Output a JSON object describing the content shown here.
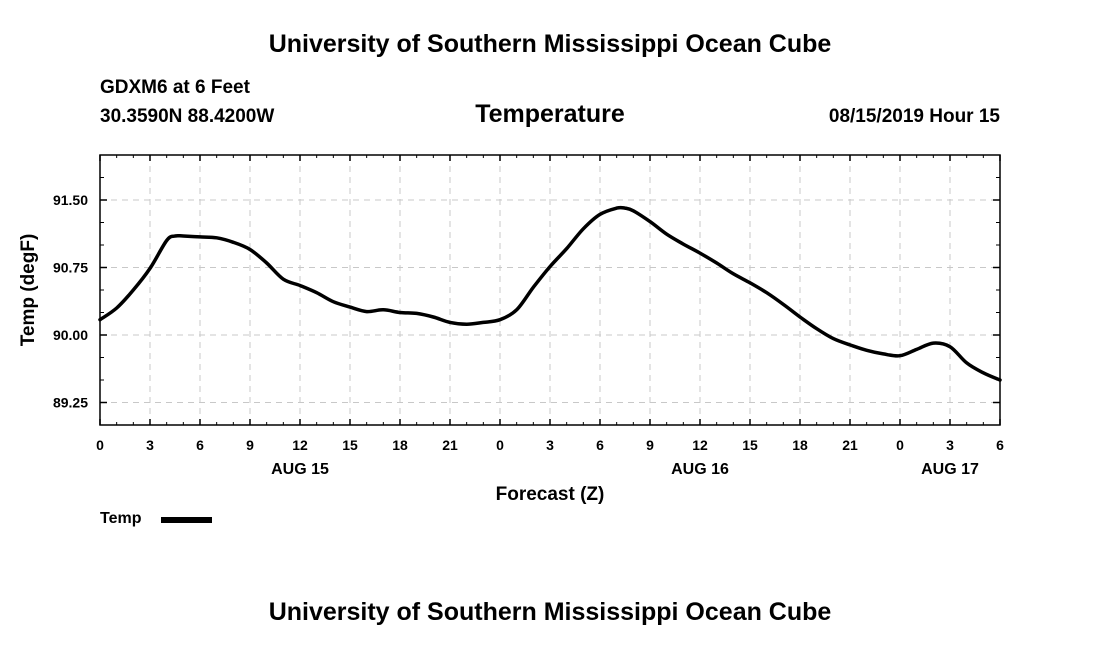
{
  "header": {
    "org_title": "University of Southern Mississippi Ocean Cube",
    "station": "GDXM6 at 6 Feet",
    "coords": "30.3590N 88.4200W",
    "chart_title": "Temperature",
    "datetime": "08/15/2019 Hour 15"
  },
  "footer": {
    "org_title": "University of Southern Mississippi Ocean Cube"
  },
  "legend": {
    "label": "Temp"
  },
  "chart_data": {
    "type": "line",
    "title": "Temperature",
    "xlabel": "Forecast (Z)",
    "ylabel": "Temp (degF)",
    "xlim": [
      0,
      54
    ],
    "ylim": [
      89.0,
      92.0
    ],
    "grid": true,
    "legend_position": "bottom-left",
    "x_tick_values": [
      0,
      3,
      6,
      9,
      12,
      15,
      18,
      21,
      24,
      27,
      30,
      33,
      36,
      39,
      42,
      45,
      48,
      51,
      54
    ],
    "x_tick_labels": [
      "0",
      "3",
      "6",
      "9",
      "12",
      "15",
      "18",
      "21",
      "0",
      "3",
      "6",
      "9",
      "12",
      "15",
      "18",
      "21",
      "0",
      "3",
      "6"
    ],
    "y_tick_values": [
      89.25,
      90.0,
      90.75,
      91.5
    ],
    "y_tick_labels": [
      "89.25",
      "90.00",
      "90.75",
      "91.50"
    ],
    "date_labels": [
      {
        "x": 12,
        "label": "AUG 15"
      },
      {
        "x": 36,
        "label": "AUG 16"
      },
      {
        "x": 51,
        "label": "AUG 17"
      }
    ],
    "series": [
      {
        "name": "Temp",
        "color": "#000000",
        "x": [
          0,
          1,
          2,
          3,
          4,
          4.5,
          5,
          6,
          7,
          8,
          9,
          10,
          11,
          12,
          13,
          14,
          15,
          16,
          17,
          18,
          19,
          20,
          21,
          22,
          23,
          24,
          25,
          26,
          27,
          28,
          29,
          30,
          31,
          31.5,
          32,
          33,
          34,
          35,
          36,
          37,
          38,
          39,
          40,
          41,
          42,
          43,
          44,
          45,
          46,
          47,
          48,
          49,
          50,
          51,
          52,
          53,
          54
        ],
        "values": [
          90.17,
          90.3,
          90.5,
          90.74,
          91.05,
          91.1,
          91.1,
          91.09,
          91.08,
          91.03,
          90.95,
          90.8,
          90.62,
          90.55,
          90.47,
          90.37,
          90.31,
          90.26,
          90.28,
          90.25,
          90.24,
          90.2,
          90.14,
          90.12,
          90.14,
          90.17,
          90.28,
          90.53,
          90.76,
          90.96,
          91.18,
          91.34,
          91.41,
          91.41,
          91.38,
          91.26,
          91.12,
          91.01,
          90.91,
          90.8,
          90.68,
          90.58,
          90.47,
          90.34,
          90.2,
          90.07,
          89.96,
          89.89,
          89.83,
          89.79,
          89.77,
          89.84,
          89.91,
          89.87,
          89.69,
          89.58,
          89.5
        ]
      }
    ]
  }
}
